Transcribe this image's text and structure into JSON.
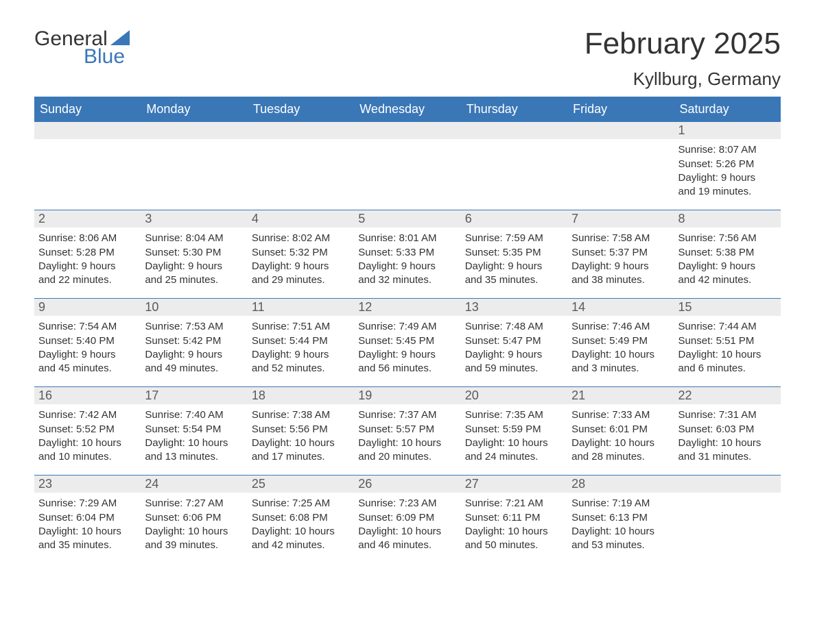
{
  "logo": {
    "text_general": "General",
    "text_blue": "Blue",
    "triangle_color": "#3a77b7"
  },
  "title": {
    "month": "February 2025",
    "location": "Kyllburg, Germany"
  },
  "colors": {
    "header_bg": "#3a77b7",
    "header_text": "#ffffff",
    "daynum_bg": "#ececec",
    "daynum_text": "#5a5a5a",
    "body_text": "#333333",
    "divider": "#3a77b7",
    "page_bg": "#ffffff"
  },
  "day_headers": [
    "Sunday",
    "Monday",
    "Tuesday",
    "Wednesday",
    "Thursday",
    "Friday",
    "Saturday"
  ],
  "weeks": [
    [
      null,
      null,
      null,
      null,
      null,
      null,
      {
        "num": "1",
        "sunrise": "Sunrise: 8:07 AM",
        "sunset": "Sunset: 5:26 PM",
        "daylight1": "Daylight: 9 hours",
        "daylight2": "and 19 minutes."
      }
    ],
    [
      {
        "num": "2",
        "sunrise": "Sunrise: 8:06 AM",
        "sunset": "Sunset: 5:28 PM",
        "daylight1": "Daylight: 9 hours",
        "daylight2": "and 22 minutes."
      },
      {
        "num": "3",
        "sunrise": "Sunrise: 8:04 AM",
        "sunset": "Sunset: 5:30 PM",
        "daylight1": "Daylight: 9 hours",
        "daylight2": "and 25 minutes."
      },
      {
        "num": "4",
        "sunrise": "Sunrise: 8:02 AM",
        "sunset": "Sunset: 5:32 PM",
        "daylight1": "Daylight: 9 hours",
        "daylight2": "and 29 minutes."
      },
      {
        "num": "5",
        "sunrise": "Sunrise: 8:01 AM",
        "sunset": "Sunset: 5:33 PM",
        "daylight1": "Daylight: 9 hours",
        "daylight2": "and 32 minutes."
      },
      {
        "num": "6",
        "sunrise": "Sunrise: 7:59 AM",
        "sunset": "Sunset: 5:35 PM",
        "daylight1": "Daylight: 9 hours",
        "daylight2": "and 35 minutes."
      },
      {
        "num": "7",
        "sunrise": "Sunrise: 7:58 AM",
        "sunset": "Sunset: 5:37 PM",
        "daylight1": "Daylight: 9 hours",
        "daylight2": "and 38 minutes."
      },
      {
        "num": "8",
        "sunrise": "Sunrise: 7:56 AM",
        "sunset": "Sunset: 5:38 PM",
        "daylight1": "Daylight: 9 hours",
        "daylight2": "and 42 minutes."
      }
    ],
    [
      {
        "num": "9",
        "sunrise": "Sunrise: 7:54 AM",
        "sunset": "Sunset: 5:40 PM",
        "daylight1": "Daylight: 9 hours",
        "daylight2": "and 45 minutes."
      },
      {
        "num": "10",
        "sunrise": "Sunrise: 7:53 AM",
        "sunset": "Sunset: 5:42 PM",
        "daylight1": "Daylight: 9 hours",
        "daylight2": "and 49 minutes."
      },
      {
        "num": "11",
        "sunrise": "Sunrise: 7:51 AM",
        "sunset": "Sunset: 5:44 PM",
        "daylight1": "Daylight: 9 hours",
        "daylight2": "and 52 minutes."
      },
      {
        "num": "12",
        "sunrise": "Sunrise: 7:49 AM",
        "sunset": "Sunset: 5:45 PM",
        "daylight1": "Daylight: 9 hours",
        "daylight2": "and 56 minutes."
      },
      {
        "num": "13",
        "sunrise": "Sunrise: 7:48 AM",
        "sunset": "Sunset: 5:47 PM",
        "daylight1": "Daylight: 9 hours",
        "daylight2": "and 59 minutes."
      },
      {
        "num": "14",
        "sunrise": "Sunrise: 7:46 AM",
        "sunset": "Sunset: 5:49 PM",
        "daylight1": "Daylight: 10 hours",
        "daylight2": "and 3 minutes."
      },
      {
        "num": "15",
        "sunrise": "Sunrise: 7:44 AM",
        "sunset": "Sunset: 5:51 PM",
        "daylight1": "Daylight: 10 hours",
        "daylight2": "and 6 minutes."
      }
    ],
    [
      {
        "num": "16",
        "sunrise": "Sunrise: 7:42 AM",
        "sunset": "Sunset: 5:52 PM",
        "daylight1": "Daylight: 10 hours",
        "daylight2": "and 10 minutes."
      },
      {
        "num": "17",
        "sunrise": "Sunrise: 7:40 AM",
        "sunset": "Sunset: 5:54 PM",
        "daylight1": "Daylight: 10 hours",
        "daylight2": "and 13 minutes."
      },
      {
        "num": "18",
        "sunrise": "Sunrise: 7:38 AM",
        "sunset": "Sunset: 5:56 PM",
        "daylight1": "Daylight: 10 hours",
        "daylight2": "and 17 minutes."
      },
      {
        "num": "19",
        "sunrise": "Sunrise: 7:37 AM",
        "sunset": "Sunset: 5:57 PM",
        "daylight1": "Daylight: 10 hours",
        "daylight2": "and 20 minutes."
      },
      {
        "num": "20",
        "sunrise": "Sunrise: 7:35 AM",
        "sunset": "Sunset: 5:59 PM",
        "daylight1": "Daylight: 10 hours",
        "daylight2": "and 24 minutes."
      },
      {
        "num": "21",
        "sunrise": "Sunrise: 7:33 AM",
        "sunset": "Sunset: 6:01 PM",
        "daylight1": "Daylight: 10 hours",
        "daylight2": "and 28 minutes."
      },
      {
        "num": "22",
        "sunrise": "Sunrise: 7:31 AM",
        "sunset": "Sunset: 6:03 PM",
        "daylight1": "Daylight: 10 hours",
        "daylight2": "and 31 minutes."
      }
    ],
    [
      {
        "num": "23",
        "sunrise": "Sunrise: 7:29 AM",
        "sunset": "Sunset: 6:04 PM",
        "daylight1": "Daylight: 10 hours",
        "daylight2": "and 35 minutes."
      },
      {
        "num": "24",
        "sunrise": "Sunrise: 7:27 AM",
        "sunset": "Sunset: 6:06 PM",
        "daylight1": "Daylight: 10 hours",
        "daylight2": "and 39 minutes."
      },
      {
        "num": "25",
        "sunrise": "Sunrise: 7:25 AM",
        "sunset": "Sunset: 6:08 PM",
        "daylight1": "Daylight: 10 hours",
        "daylight2": "and 42 minutes."
      },
      {
        "num": "26",
        "sunrise": "Sunrise: 7:23 AM",
        "sunset": "Sunset: 6:09 PM",
        "daylight1": "Daylight: 10 hours",
        "daylight2": "and 46 minutes."
      },
      {
        "num": "27",
        "sunrise": "Sunrise: 7:21 AM",
        "sunset": "Sunset: 6:11 PM",
        "daylight1": "Daylight: 10 hours",
        "daylight2": "and 50 minutes."
      },
      {
        "num": "28",
        "sunrise": "Sunrise: 7:19 AM",
        "sunset": "Sunset: 6:13 PM",
        "daylight1": "Daylight: 10 hours",
        "daylight2": "and 53 minutes."
      },
      null
    ]
  ]
}
